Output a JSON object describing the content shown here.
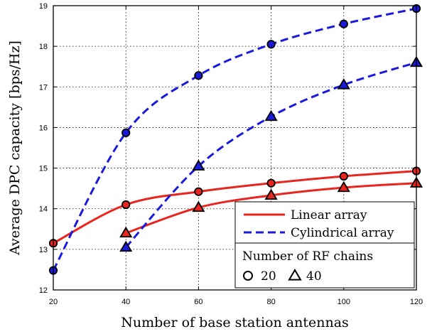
{
  "chart_data": {
    "type": "line",
    "xlabel": "Number of base station antennas",
    "ylabel": "Average DPC capacity [bps/Hz]",
    "xlim": [
      20,
      120
    ],
    "ylim": [
      12,
      19
    ],
    "xticks": [
      20,
      40,
      60,
      80,
      100,
      120
    ],
    "yticks": [
      12,
      13,
      14,
      15,
      16,
      17,
      18,
      19
    ],
    "grid": true,
    "legend_position": "bottom-right",
    "series": [
      {
        "name": "Linear array",
        "rf_chains": 20,
        "color": "#e8251f",
        "dash": "solid",
        "marker": "circle",
        "x": [
          20,
          40,
          60,
          80,
          100,
          120
        ],
        "y": [
          13.15,
          14.1,
          14.42,
          14.63,
          14.8,
          14.93
        ]
      },
      {
        "name": "Linear array",
        "rf_chains": 40,
        "color": "#e8251f",
        "dash": "solid",
        "marker": "triangle",
        "x": [
          40,
          60,
          80,
          100,
          120
        ],
        "y": [
          13.4,
          14.03,
          14.33,
          14.52,
          14.63
        ]
      },
      {
        "name": "Cylindrical array",
        "rf_chains": 20,
        "color": "#1a1adb",
        "dash": "dashed",
        "marker": "circle",
        "x": [
          20,
          40,
          60,
          80,
          100,
          120
        ],
        "y": [
          12.48,
          15.87,
          17.28,
          18.05,
          18.55,
          18.93
        ]
      },
      {
        "name": "Cylindrical array",
        "rf_chains": 40,
        "color": "#1a1adb",
        "dash": "dashed",
        "marker": "triangle",
        "x": [
          40,
          60,
          80,
          100,
          120
        ],
        "y": [
          13.05,
          15.05,
          16.27,
          17.05,
          17.6
        ]
      }
    ],
    "legend": {
      "lines": [
        {
          "label": "Linear array",
          "color": "#e8251f",
          "dash": "solid"
        },
        {
          "label": "Cylindrical array",
          "color": "#1a1adb",
          "dash": "dashed"
        }
      ],
      "marker_title": "Number of RF chains",
      "markers": [
        {
          "marker": "circle",
          "label": "20"
        },
        {
          "marker": "triangle",
          "label": "40"
        }
      ]
    }
  }
}
